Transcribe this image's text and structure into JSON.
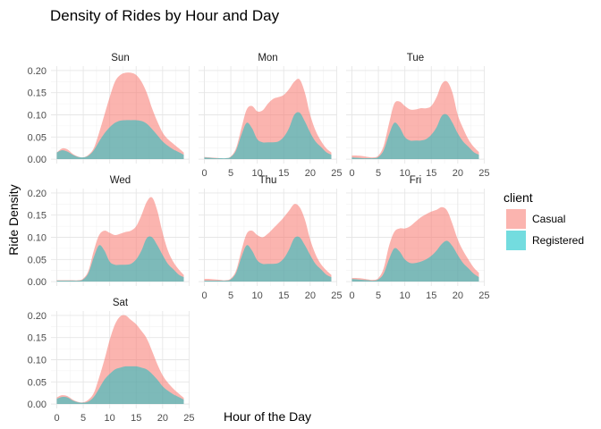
{
  "chart_data": {
    "type": "area",
    "title": "Density of Rides by Hour and Day",
    "xlabel": "Hour of the Day",
    "ylabel": "Ride Density",
    "xlim": [
      0,
      25
    ],
    "ylim": [
      0,
      0.21
    ],
    "x_ticks": [
      0,
      5,
      10,
      15,
      20,
      25
    ],
    "y_ticks": [
      0,
      0.05,
      0.1,
      0.15,
      0.2
    ],
    "y_tick_labels": [
      "0.00",
      "0.05",
      "0.10",
      "0.15",
      "0.20"
    ],
    "stacked": true,
    "grid": true,
    "legend": {
      "title": "client",
      "position": "right",
      "entries": [
        {
          "name": "Casual",
          "color": "#F8766D"
        },
        {
          "name": "Registered",
          "color": "#00BFC4"
        }
      ]
    },
    "x": [
      0,
      1,
      2,
      3,
      4,
      5,
      6,
      7,
      8,
      9,
      10,
      11,
      12,
      13,
      14,
      15,
      16,
      17,
      18,
      19,
      20,
      21,
      22,
      23,
      24
    ],
    "facets": [
      {
        "name": "Sun",
        "series": [
          {
            "name": "Registered",
            "values": [
              0.015,
              0.02,
              0.017,
              0.01,
              0.005,
              0.004,
              0.008,
              0.02,
              0.04,
              0.058,
              0.072,
              0.082,
              0.087,
              0.088,
              0.088,
              0.088,
              0.086,
              0.08,
              0.068,
              0.054,
              0.04,
              0.03,
              0.022,
              0.016,
              0.01
            ]
          },
          {
            "name": "Casual",
            "values": [
              0.015,
              0.024,
              0.022,
              0.012,
              0.006,
              0.004,
              0.01,
              0.025,
              0.06,
              0.1,
              0.14,
              0.175,
              0.19,
              0.195,
              0.195,
              0.19,
              0.175,
              0.15,
              0.115,
              0.085,
              0.06,
              0.045,
              0.035,
              0.025,
              0.015
            ]
          }
        ]
      },
      {
        "name": "Mon",
        "series": [
          {
            "name": "Registered",
            "values": [
              0.004,
              0.003,
              0.002,
              0.002,
              0.002,
              0.005,
              0.02,
              0.055,
              0.082,
              0.07,
              0.045,
              0.038,
              0.038,
              0.038,
              0.04,
              0.05,
              0.07,
              0.1,
              0.105,
              0.085,
              0.06,
              0.04,
              0.028,
              0.016,
              0.01
            ]
          },
          {
            "name": "Casual",
            "values": [
              0.005,
              0.004,
              0.003,
              0.002,
              0.002,
              0.006,
              0.025,
              0.07,
              0.112,
              0.12,
              0.108,
              0.11,
              0.125,
              0.136,
              0.14,
              0.145,
              0.158,
              0.175,
              0.18,
              0.15,
              0.1,
              0.065,
              0.042,
              0.025,
              0.015
            ]
          }
        ]
      },
      {
        "name": "Tue",
        "series": [
          {
            "name": "Registered",
            "values": [
              0.004,
              0.003,
              0.002,
              0.002,
              0.002,
              0.005,
              0.02,
              0.055,
              0.082,
              0.072,
              0.05,
              0.042,
              0.042,
              0.042,
              0.045,
              0.055,
              0.072,
              0.098,
              0.1,
              0.082,
              0.058,
              0.04,
              0.028,
              0.016,
              0.01
            ]
          },
          {
            "name": "Casual",
            "values": [
              0.008,
              0.008,
              0.007,
              0.005,
              0.004,
              0.008,
              0.03,
              0.08,
              0.125,
              0.13,
              0.12,
              0.112,
              0.112,
              0.115,
              0.115,
              0.12,
              0.14,
              0.17,
              0.175,
              0.15,
              0.1,
              0.07,
              0.045,
              0.028,
              0.016
            ]
          }
        ]
      },
      {
        "name": "Wed",
        "series": [
          {
            "name": "Registered",
            "values": [
              0.002,
              0.002,
              0.002,
              0.002,
              0.002,
              0.005,
              0.02,
              0.055,
              0.082,
              0.07,
              0.045,
              0.038,
              0.038,
              0.038,
              0.04,
              0.05,
              0.07,
              0.098,
              0.1,
              0.082,
              0.06,
              0.04,
              0.028,
              0.016,
              0.01
            ]
          },
          {
            "name": "Casual",
            "values": [
              0.003,
              0.003,
              0.003,
              0.003,
              0.003,
              0.007,
              0.025,
              0.07,
              0.105,
              0.115,
              0.11,
              0.105,
              0.108,
              0.112,
              0.115,
              0.125,
              0.15,
              0.18,
              0.19,
              0.16,
              0.11,
              0.07,
              0.045,
              0.028,
              0.015
            ]
          }
        ]
      },
      {
        "name": "Thu",
        "series": [
          {
            "name": "Registered",
            "values": [
              0.002,
              0.002,
              0.002,
              0.002,
              0.002,
              0.005,
              0.02,
              0.055,
              0.082,
              0.07,
              0.048,
              0.04,
              0.04,
              0.04,
              0.042,
              0.052,
              0.072,
              0.098,
              0.1,
              0.082,
              0.06,
              0.04,
              0.028,
              0.016,
              0.01
            ]
          },
          {
            "name": "Casual",
            "values": [
              0.006,
              0.006,
              0.005,
              0.004,
              0.003,
              0.007,
              0.025,
              0.07,
              0.108,
              0.115,
              0.105,
              0.1,
              0.108,
              0.12,
              0.132,
              0.145,
              0.16,
              0.175,
              0.168,
              0.14,
              0.095,
              0.062,
              0.04,
              0.026,
              0.015
            ]
          }
        ]
      },
      {
        "name": "Fri",
        "series": [
          {
            "name": "Registered",
            "values": [
              0.006,
              0.005,
              0.004,
              0.003,
              0.002,
              0.005,
              0.018,
              0.05,
              0.075,
              0.068,
              0.05,
              0.042,
              0.042,
              0.045,
              0.05,
              0.058,
              0.07,
              0.085,
              0.092,
              0.08,
              0.06,
              0.042,
              0.03,
              0.018,
              0.01
            ]
          },
          {
            "name": "Casual",
            "values": [
              0.008,
              0.008,
              0.007,
              0.005,
              0.004,
              0.008,
              0.03,
              0.08,
              0.112,
              0.12,
              0.12,
              0.125,
              0.135,
              0.145,
              0.152,
              0.158,
              0.162,
              0.168,
              0.16,
              0.13,
              0.095,
              0.07,
              0.05,
              0.032,
              0.02
            ]
          }
        ]
      },
      {
        "name": "Sat",
        "series": [
          {
            "name": "Registered",
            "values": [
              0.012,
              0.016,
              0.015,
              0.008,
              0.004,
              0.003,
              0.006,
              0.016,
              0.035,
              0.055,
              0.068,
              0.078,
              0.082,
              0.085,
              0.085,
              0.085,
              0.082,
              0.078,
              0.068,
              0.055,
              0.04,
              0.03,
              0.022,
              0.016,
              0.01
            ]
          },
          {
            "name": "Casual",
            "values": [
              0.015,
              0.02,
              0.018,
              0.01,
              0.005,
              0.004,
              0.01,
              0.025,
              0.06,
              0.1,
              0.145,
              0.18,
              0.198,
              0.2,
              0.19,
              0.18,
              0.165,
              0.148,
              0.12,
              0.09,
              0.065,
              0.048,
              0.035,
              0.024,
              0.014
            ]
          }
        ]
      }
    ]
  }
}
